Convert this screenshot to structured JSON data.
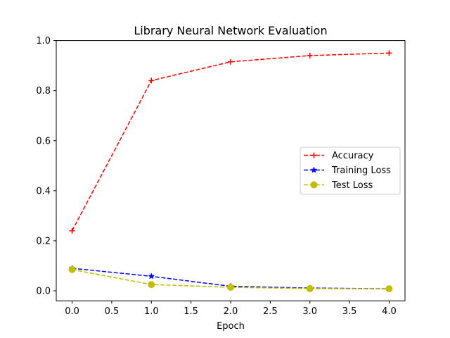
{
  "chart_data": {
    "type": "line",
    "title": "Library Neural Network Evaluation",
    "xlabel": "Epoch",
    "ylabel": "",
    "x": [
      0,
      1,
      2,
      3,
      4
    ],
    "xlim": [
      -0.2,
      4.2
    ],
    "ylim": [
      -0.04,
      1.0
    ],
    "xticks": [
      "0.0",
      "0.5",
      "1.0",
      "1.5",
      "2.0",
      "2.5",
      "3.0",
      "3.5",
      "4.0"
    ],
    "yticks": [
      "0.0",
      "0.2",
      "0.4",
      "0.6",
      "0.8",
      "1.0"
    ],
    "grid": false,
    "legend_position": "center-right",
    "series": [
      {
        "name": "Accuracy",
        "values": [
          0.24,
          0.84,
          0.915,
          0.94,
          0.95
        ],
        "color": "#ff0000",
        "marker": "plus"
      },
      {
        "name": "Training Loss",
        "values": [
          0.09,
          0.058,
          0.018,
          0.011,
          0.008
        ],
        "color": "#0000ff",
        "marker": "star"
      },
      {
        "name": "Test Loss",
        "values": [
          0.085,
          0.025,
          0.014,
          0.009,
          0.008
        ],
        "color": "#bfbf00",
        "marker": "circle"
      }
    ]
  }
}
